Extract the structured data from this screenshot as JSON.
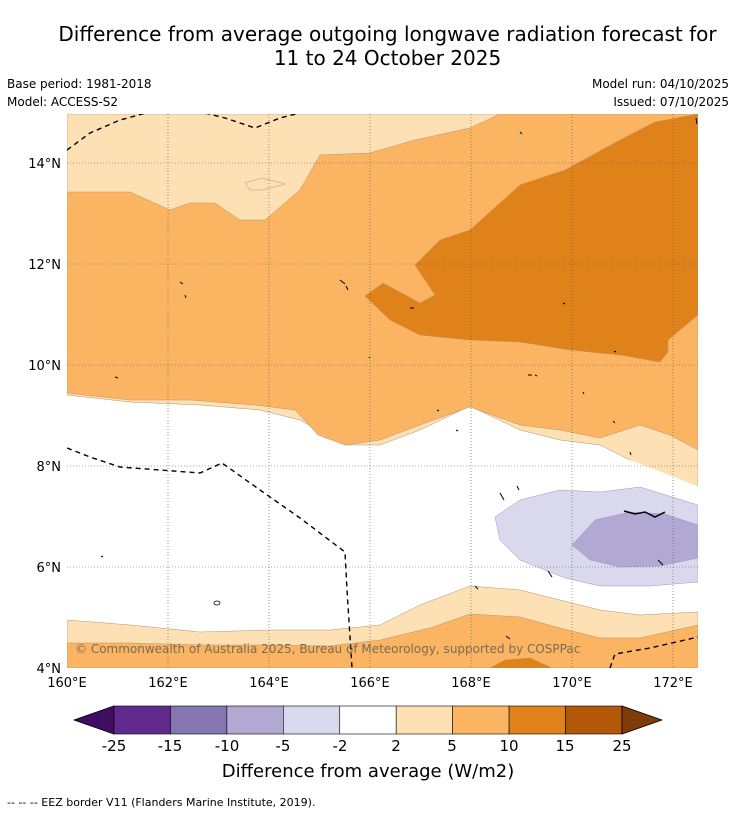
{
  "title": {
    "line1": "Difference from average outgoing longwave radiation forecast for",
    "line2": "11 to 24 October 2025"
  },
  "meta": {
    "base_period": "Base period: 1981-2018",
    "model": "Model: ACCESS-S2",
    "model_run": "Model run: 04/10/2025",
    "issued": "Issued: 07/10/2025"
  },
  "axes": {
    "lat_labels": [
      "14°N",
      "12°N",
      "10°N",
      "8°N",
      "6°N",
      "4°N"
    ],
    "lon_labels": [
      "160°E",
      "162°E",
      "164°E",
      "166°E",
      "168°E",
      "170°E",
      "172°E"
    ]
  },
  "copyright": "© Commonwealth of Australia 2025, Bureau of Meteorology, supported by COSPPac",
  "colorbar": {
    "ticks": [
      "-25",
      "-15",
      "-10",
      "-5",
      "-2",
      "2",
      "5",
      "10",
      "15",
      "25"
    ],
    "colors": [
      "#3f0e63",
      "#5f2a8c",
      "#8576b2",
      "#b1a9d4",
      "#d9d8ec",
      "#ffffff",
      "#fde0b4",
      "#fbb562",
      "#e0821a",
      "#b35808",
      "#7f3c0a"
    ],
    "label": "Difference from average (W/m2)"
  },
  "footnote": "--  --  -- EEZ border V11 (Flanders Marine Institute, 2019)."
}
